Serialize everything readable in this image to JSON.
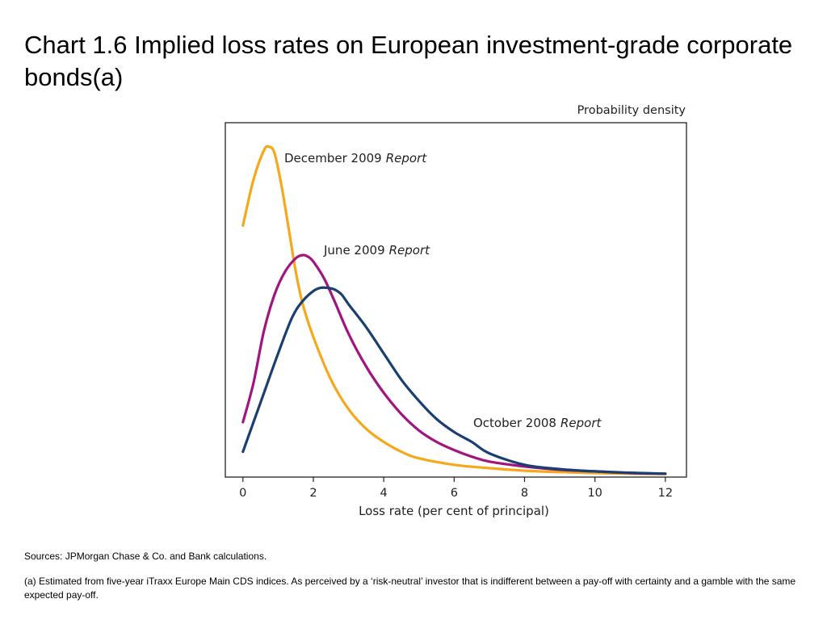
{
  "slide": {
    "title": "Chart 1.6  Implied loss rates on European investment-grade corporate bonds(a)",
    "sources": "Sources:  JPMorgan Chase & Co. and Bank calculations.",
    "footnote": "(a)  Estimated from five-year iTraxx Europe Main CDS indices.  As perceived by a ‘risk-neutral’ investor that is indifferent between a pay-off with certainty and a gamble with the same expected pay-off."
  },
  "chart_data": {
    "type": "line",
    "title": "",
    "xlabel": "Loss rate (per cent of principal)",
    "ylabel": "Probability density",
    "xlim": [
      -0.5,
      12.6
    ],
    "ylim": [
      0,
      100
    ],
    "xticks": [
      0,
      2,
      4,
      6,
      8,
      10,
      12
    ],
    "grid": false,
    "legend": "inline labels",
    "series": [
      {
        "name": "December 2009",
        "name_italic": "Report",
        "color": "#f5a81c",
        "x": [
          0,
          0.3,
          0.6,
          0.75,
          0.9,
          1.1,
          1.3,
          1.5,
          1.7,
          2,
          2.5,
          3,
          3.5,
          4,
          4.5,
          5,
          6,
          7,
          8,
          9,
          10,
          11,
          12
        ],
        "y": [
          76,
          90,
          99,
          100,
          98,
          88,
          75,
          62,
          52,
          42,
          29,
          20,
          14,
          10,
          7,
          5,
          3,
          2,
          1.2,
          0.8,
          0.5,
          0.3,
          0.2
        ]
      },
      {
        "name": "June 2009",
        "name_italic": "Report",
        "color": "#a0157f",
        "x": [
          0,
          0.3,
          0.6,
          0.9,
          1.2,
          1.5,
          1.7,
          1.85,
          2,
          2.3,
          2.6,
          3,
          3.5,
          4,
          4.5,
          5,
          5.5,
          6,
          6.5,
          7,
          8,
          9,
          10,
          11,
          12
        ],
        "y": [
          16,
          28,
          44,
          55,
          62,
          66,
          67,
          66.5,
          65,
          60,
          53,
          43,
          33,
          25,
          18.5,
          13.5,
          10,
          7.5,
          5.5,
          4,
          2.5,
          1.5,
          1,
          0.5,
          0.3
        ]
      },
      {
        "name": "October 2008",
        "name_italic": "Report",
        "color": "#1b3f72",
        "x": [
          0,
          0.5,
          1,
          1.4,
          1.7,
          2,
          2.2,
          2.4,
          2.6,
          2.8,
          3,
          3.5,
          4,
          4.5,
          5,
          5.5,
          6,
          6.5,
          7,
          8,
          9,
          10,
          11,
          12
        ],
        "y": [
          7,
          22,
          37,
          48,
          53,
          56,
          57,
          57,
          56.5,
          55,
          52,
          45,
          37,
          29,
          22.5,
          17,
          13,
          10,
          6.5,
          3,
          1.7,
          1,
          0.6,
          0.3
        ]
      }
    ]
  }
}
